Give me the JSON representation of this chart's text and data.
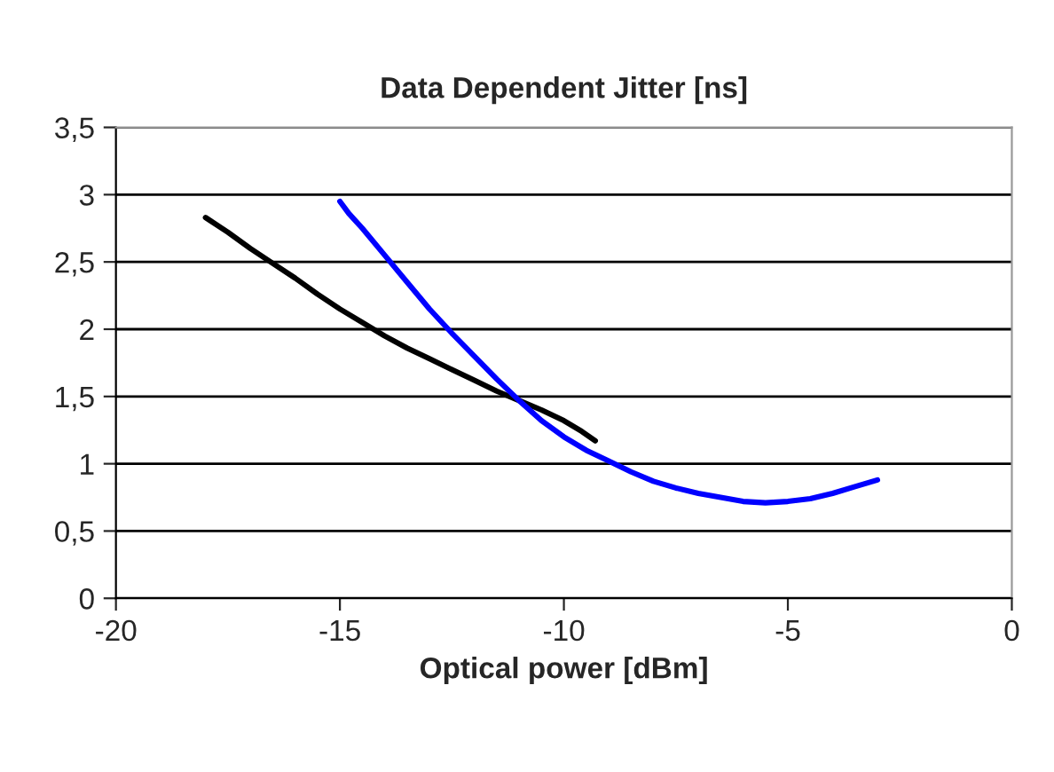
{
  "chart_data": {
    "type": "line",
    "title": "Data Dependent Jitter [ns]",
    "xlabel": "Optical power [dBm]",
    "xlim": [
      -20,
      0
    ],
    "xticks": [
      -20,
      -15,
      -10,
      -5,
      0
    ],
    "ylim": [
      0,
      3.5
    ],
    "yticks": [
      {
        "value": 0,
        "label": "0"
      },
      {
        "value": 0.5,
        "label": "0,5"
      },
      {
        "value": 1,
        "label": "1"
      },
      {
        "value": 1.5,
        "label": "1,5"
      },
      {
        "value": 2,
        "label": "2"
      },
      {
        "value": 2.5,
        "label": "2,5"
      },
      {
        "value": 3,
        "label": "3"
      },
      {
        "value": 3.5,
        "label": "3,5"
      }
    ],
    "grid": "y",
    "marker": "none",
    "line_style": "solid",
    "series": [
      {
        "color": "#000000",
        "x": [
          -18,
          -17.5,
          -17,
          -16.5,
          -16,
          -15.5,
          -15,
          -14.5,
          -14,
          -13.5,
          -13,
          -12.5,
          -12,
          -11.5,
          -11,
          -10.5,
          -10,
          -9.6,
          -9.3
        ],
        "values": [
          2.83,
          2.72,
          2.6,
          2.49,
          2.38,
          2.26,
          2.15,
          2.05,
          1.95,
          1.86,
          1.78,
          1.7,
          1.62,
          1.54,
          1.47,
          1.4,
          1.32,
          1.24,
          1.17
        ]
      },
      {
        "color": "#0000ff",
        "x": [
          -15,
          -14.8,
          -14.5,
          -14,
          -13.5,
          -13,
          -12.5,
          -12,
          -11.5,
          -11,
          -10.5,
          -10,
          -9.5,
          -9,
          -8.5,
          -8,
          -7.5,
          -7,
          -6.5,
          -6,
          -5.5,
          -5,
          -4.5,
          -4,
          -3.5,
          -3
        ],
        "values": [
          2.95,
          2.86,
          2.75,
          2.55,
          2.35,
          2.15,
          1.97,
          1.8,
          1.63,
          1.47,
          1.32,
          1.2,
          1.1,
          1.02,
          0.94,
          0.87,
          0.82,
          0.78,
          0.75,
          0.72,
          0.71,
          0.72,
          0.74,
          0.78,
          0.83,
          0.88
        ]
      }
    ]
  }
}
